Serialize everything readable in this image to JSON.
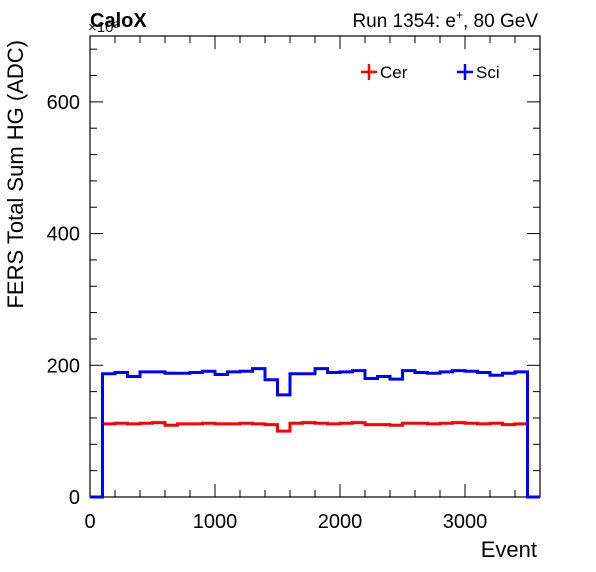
{
  "header": {
    "brand": "CaloX",
    "exponent_label": "×10³",
    "run_label": "Run 1354: e",
    "run_superscript": "+",
    "run_suffix": ", 80 GeV"
  },
  "chart_data": {
    "type": "line",
    "title": "",
    "xlabel": "Event",
    "ylabel": "FERS Total Sum HG (ADC)",
    "xlim": [
      0,
      3600
    ],
    "ylim": [
      0,
      700
    ],
    "y_multiplier": "×10³",
    "xticks": [
      0,
      1000,
      2000,
      3000
    ],
    "yticks": [
      0,
      200,
      400,
      600
    ],
    "xtick_labels": [
      "0",
      "1000",
      "2000",
      "3000"
    ],
    "ytick_labels": [
      "0",
      "200",
      "400",
      "600"
    ],
    "grid": false,
    "legend_position": "top-right",
    "bin_width": 100,
    "x": [
      0,
      100,
      200,
      300,
      400,
      500,
      600,
      700,
      800,
      900,
      1000,
      1100,
      1200,
      1300,
      1400,
      1500,
      1600,
      1700,
      1800,
      1900,
      2000,
      2100,
      2200,
      2300,
      2400,
      2500,
      2600,
      2700,
      2800,
      2900,
      3000,
      3100,
      3200,
      3300,
      3400,
      3500
    ],
    "series": [
      {
        "name": "Cer",
        "color": "#ff0000",
        "values": [
          0,
          111,
          112,
          111,
          112,
          113,
          109,
          111,
          111,
          112,
          111,
          111,
          112,
          111,
          110,
          100,
          112,
          113,
          112,
          111,
          112,
          113,
          110,
          110,
          109,
          112,
          112,
          111,
          112,
          113,
          112,
          111,
          112,
          110,
          111,
          0
        ]
      },
      {
        "name": "Sci",
        "color": "#0000ff",
        "values": [
          0,
          187,
          189,
          183,
          190,
          190,
          188,
          188,
          189,
          191,
          186,
          190,
          191,
          195,
          178,
          155,
          187,
          187,
          195,
          189,
          190,
          192,
          180,
          183,
          179,
          192,
          189,
          188,
          190,
          192,
          191,
          189,
          185,
          188,
          190,
          0
        ]
      }
    ]
  }
}
